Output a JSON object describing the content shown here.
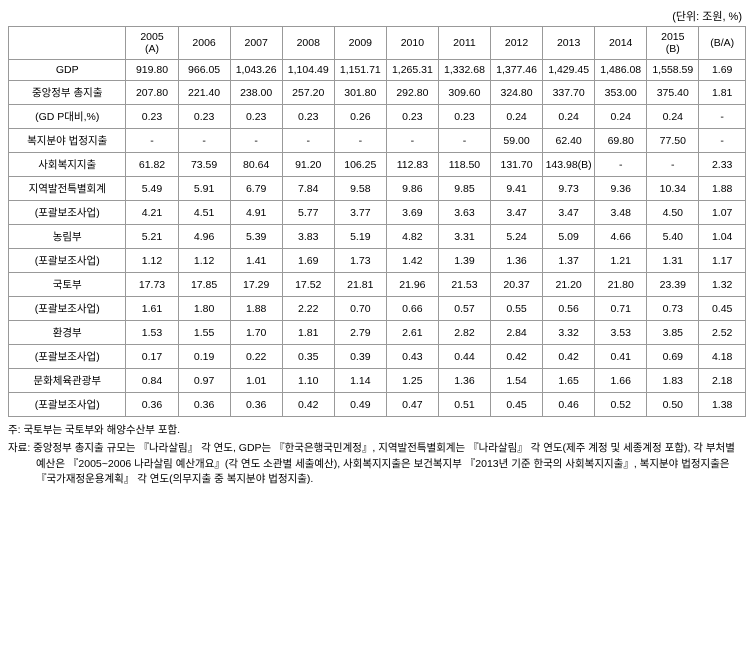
{
  "unit_label": "(단위: 조원, %)",
  "headers": {
    "blank": "",
    "years": [
      "2005\n(A)",
      "2006",
      "2007",
      "2008",
      "2009",
      "2010",
      "2011",
      "2012",
      "2013",
      "2014",
      "2015\n(B)"
    ],
    "ba": "(B/A)"
  },
  "rows": [
    {
      "label": "GDP",
      "v": [
        "919.80",
        "966.05",
        "1,043.26",
        "1,104.49",
        "1,151.71",
        "1,265.31",
        "1,332.68",
        "1,377.46",
        "1,429.45",
        "1,486.08",
        "1,558.59",
        "1.69"
      ]
    },
    {
      "label": "중앙정부 총지출",
      "v": [
        "207.80",
        "221.40",
        "238.00",
        "257.20",
        "301.80",
        "292.80",
        "309.60",
        "324.80",
        "337.70",
        "353.00",
        "375.40",
        "1.81"
      ]
    },
    {
      "label": "(GD P대비,%)",
      "v": [
        "0.23",
        "0.23",
        "0.23",
        "0.23",
        "0.26",
        "0.23",
        "0.23",
        "0.24",
        "0.24",
        "0.24",
        "0.24",
        "-"
      ]
    },
    {
      "label": "복지분야 법정지출",
      "v": [
        "-",
        "-",
        "-",
        "-",
        "-",
        "-",
        "-",
        "59.00",
        "62.40",
        "69.80",
        "77.50",
        "-"
      ]
    },
    {
      "label": "사회복지지출",
      "v": [
        "61.82",
        "73.59",
        "80.64",
        "91.20",
        "106.25",
        "112.83",
        "118.50",
        "131.70",
        "143.98(B)",
        "-",
        "-",
        "2.33"
      ]
    },
    {
      "label": "지역발전특별회계",
      "v": [
        "5.49",
        "5.91",
        "6.79",
        "7.84",
        "9.58",
        "9.86",
        "9.85",
        "9.41",
        "9.73",
        "9.36",
        "10.34",
        "1.88"
      ]
    },
    {
      "label": "(포괄보조사업)",
      "v": [
        "4.21",
        "4.51",
        "4.91",
        "5.77",
        "3.77",
        "3.69",
        "3.63",
        "3.47",
        "3.47",
        "3.48",
        "4.50",
        "1.07"
      ]
    },
    {
      "label": "농림부",
      "v": [
        "5.21",
        "4.96",
        "5.39",
        "3.83",
        "5.19",
        "4.82",
        "3.31",
        "5.24",
        "5.09",
        "4.66",
        "5.40",
        "1.04"
      ]
    },
    {
      "label": "(포괄보조사업)",
      "v": [
        "1.12",
        "1.12",
        "1.41",
        "1.69",
        "1.73",
        "1.42",
        "1.39",
        "1.36",
        "1.37",
        "1.21",
        "1.31",
        "1.17"
      ]
    },
    {
      "label": "국토부",
      "v": [
        "17.73",
        "17.85",
        "17.29",
        "17.52",
        "21.81",
        "21.96",
        "21.53",
        "20.37",
        "21.20",
        "21.80",
        "23.39",
        "1.32"
      ]
    },
    {
      "label": "(포괄보조사업)",
      "v": [
        "1.61",
        "1.80",
        "1.88",
        "2.22",
        "0.70",
        "0.66",
        "0.57",
        "0.55",
        "0.56",
        "0.71",
        "0.73",
        "0.45"
      ]
    },
    {
      "label": "환경부",
      "v": [
        "1.53",
        "1.55",
        "1.70",
        "1.81",
        "2.79",
        "2.61",
        "2.82",
        "2.84",
        "3.32",
        "3.53",
        "3.85",
        "2.52"
      ]
    },
    {
      "label": "(포괄보조사업)",
      "v": [
        "0.17",
        "0.19",
        "0.22",
        "0.35",
        "0.39",
        "0.43",
        "0.44",
        "0.42",
        "0.42",
        "0.41",
        "0.69",
        "4.18"
      ]
    },
    {
      "label": "문화체육관광부",
      "v": [
        "0.84",
        "0.97",
        "1.01",
        "1.10",
        "1.14",
        "1.25",
        "1.36",
        "1.54",
        "1.65",
        "1.66",
        "1.83",
        "2.18"
      ]
    },
    {
      "label": "(포괄보조사업)",
      "v": [
        "0.36",
        "0.36",
        "0.36",
        "0.42",
        "0.49",
        "0.47",
        "0.51",
        "0.45",
        "0.46",
        "0.52",
        "0.50",
        "1.38"
      ]
    }
  ],
  "note1": "주: 국토부는 국토부와 해양수산부 포함.",
  "note2": "자료: 중앙정부 총지출 규모는 『나라살림』 각 연도, GDP는 『한국은행국민계정』, 지역발전특별회계는 『나라살림』 각 연도(제주 계정 및 세종계정 포함), 각 부처별 예산은 『2005~2006 나라살림 예산개요』(각 연도 소관별 세출예산), 사회복지지출은 보건복지부 『2013년 기준 한국의 사회복지지출』, 복지분야 법정지출은 『국가재정운용계획』 각 연도(의무지출 중 복지분야 법정지출)."
}
